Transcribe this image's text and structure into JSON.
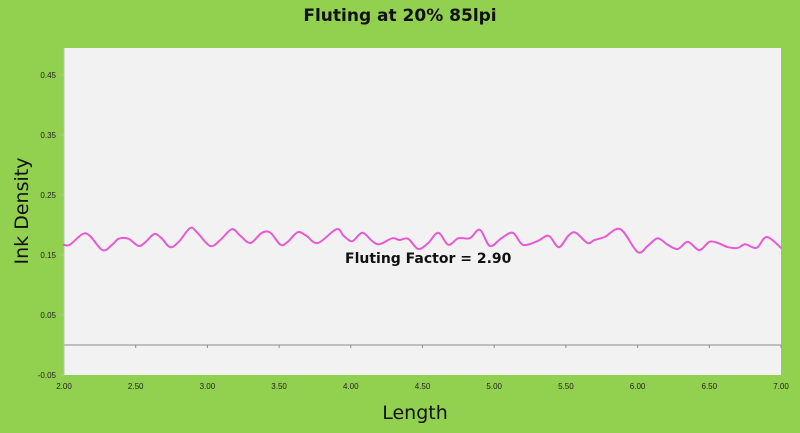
{
  "chart_data": {
    "type": "line",
    "title": "Fluting at 20% 85lpi",
    "xlabel": "Length",
    "ylabel": "Ink Density",
    "xlim": [
      2.0,
      7.0
    ],
    "ylim": [
      -0.05,
      0.5
    ],
    "x_ticks": [
      "2.00",
      "2.50",
      "3.00",
      "3.50",
      "4.00",
      "4.50",
      "5.00",
      "5.50",
      "6.00",
      "6.50",
      "7.00"
    ],
    "y_ticks": [
      "-0.05",
      "0.05",
      "0.15",
      "0.25",
      "0.35",
      "0.45"
    ],
    "grid": false,
    "legend": null,
    "annotation": "Fluting Factor = 2.90",
    "series": [
      {
        "name": "Ink Density",
        "color": "#e85ad4",
        "x": [
          2.0,
          2.04,
          2.13,
          2.18,
          2.27,
          2.34,
          2.38,
          2.45,
          2.52,
          2.57,
          2.63,
          2.68,
          2.74,
          2.8,
          2.88,
          2.93,
          3.02,
          3.09,
          3.17,
          3.23,
          3.3,
          3.38,
          3.44,
          3.51,
          3.56,
          3.63,
          3.69,
          3.77,
          3.9,
          3.95,
          4.01,
          4.08,
          4.15,
          4.2,
          4.29,
          4.34,
          4.4,
          4.47,
          4.54,
          4.61,
          4.68,
          4.75,
          4.83,
          4.9,
          4.97,
          5.05,
          5.13,
          5.2,
          5.3,
          5.38,
          5.45,
          5.52,
          5.57,
          5.65,
          5.7,
          5.77,
          5.88,
          6.0,
          6.07,
          6.14,
          6.21,
          6.28,
          6.35,
          6.43,
          6.5,
          6.56,
          6.63,
          6.7,
          6.75,
          6.83,
          6.9,
          7.0
        ],
        "y": [
          0.167,
          0.167,
          0.185,
          0.182,
          0.158,
          0.168,
          0.177,
          0.177,
          0.165,
          0.172,
          0.185,
          0.178,
          0.163,
          0.172,
          0.195,
          0.187,
          0.165,
          0.175,
          0.193,
          0.182,
          0.17,
          0.187,
          0.187,
          0.167,
          0.172,
          0.188,
          0.182,
          0.17,
          0.193,
          0.182,
          0.173,
          0.187,
          0.173,
          0.168,
          0.178,
          0.175,
          0.177,
          0.16,
          0.17,
          0.187,
          0.167,
          0.178,
          0.178,
          0.192,
          0.165,
          0.178,
          0.187,
          0.167,
          0.173,
          0.182,
          0.163,
          0.183,
          0.187,
          0.17,
          0.175,
          0.18,
          0.193,
          0.155,
          0.165,
          0.178,
          0.167,
          0.16,
          0.172,
          0.158,
          0.172,
          0.17,
          0.163,
          0.162,
          0.168,
          0.162,
          0.18,
          0.162
        ]
      }
    ]
  }
}
